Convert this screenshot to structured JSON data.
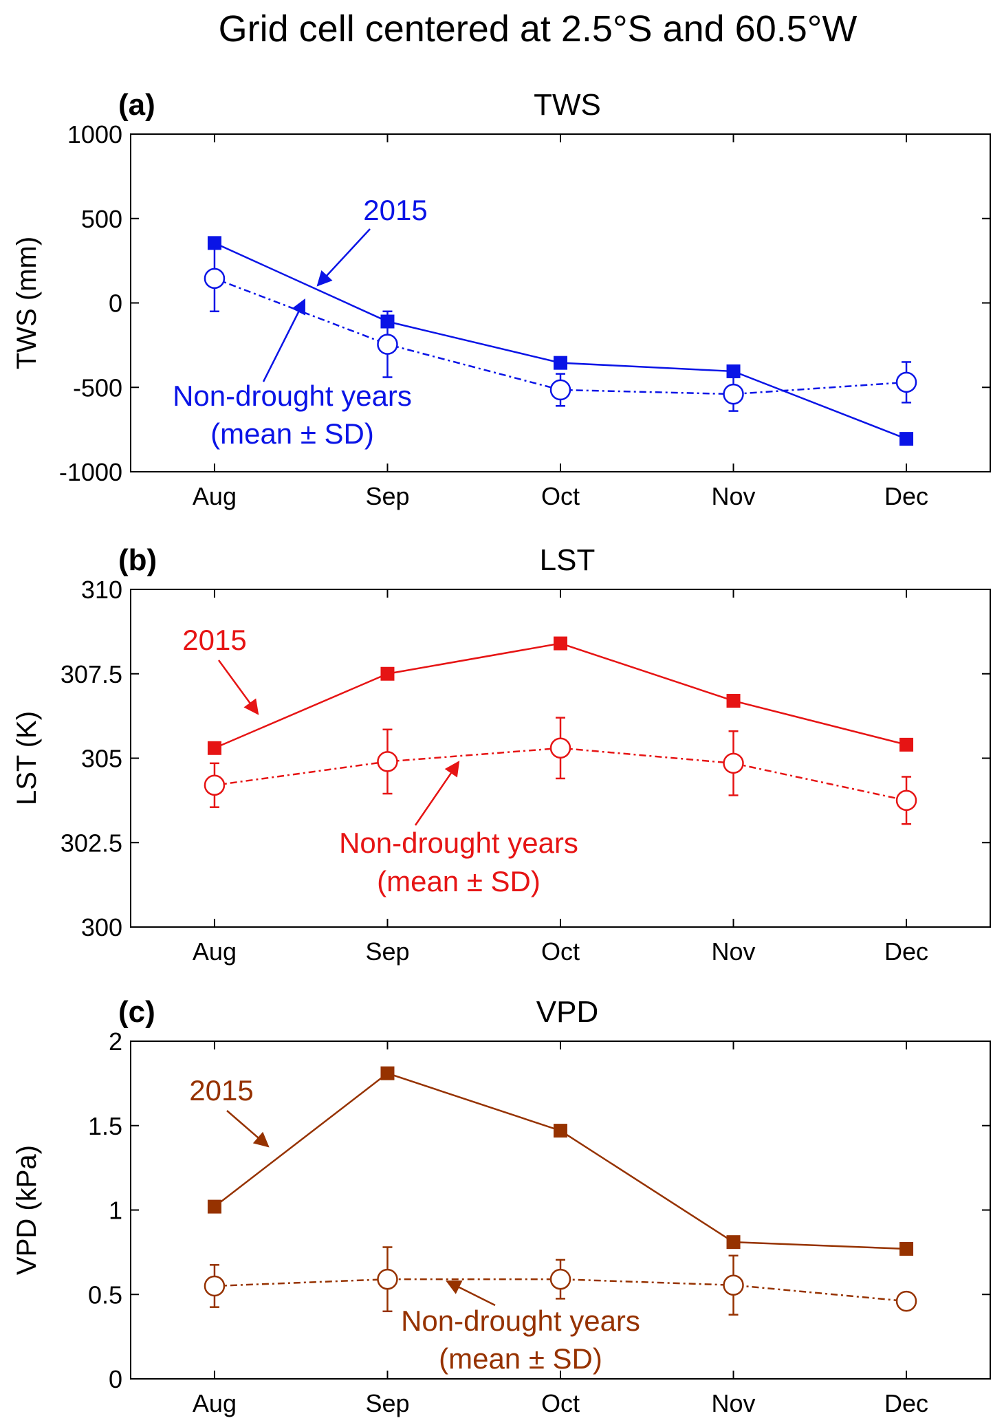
{
  "figure_title": "Grid cell centered at 2.5°S and 60.5°W",
  "chart_data": [
    {
      "type": "line",
      "panel_label": "(a)",
      "title": "TWS",
      "ylabel": "TWS (mm)",
      "xlabel": "",
      "categories": [
        "Aug",
        "Sep",
        "Oct",
        "Nov",
        "Dec"
      ],
      "ylim": [
        -1000,
        1000
      ],
      "yticks": [
        1000,
        500,
        0,
        -500,
        -1000
      ],
      "ytick_labels": [
        "1000",
        "500",
        "0",
        "-500",
        "-1000"
      ],
      "grid": false,
      "color": "#0a14e6",
      "series": [
        {
          "name": "2015",
          "values": [
            355,
            -110,
            -355,
            -405,
            -805
          ],
          "style": "solid",
          "marker": "filled-square"
        },
        {
          "name": "Non-drought years (mean ± SD)",
          "values": [
            145,
            -245,
            -515,
            -540,
            -470
          ],
          "sd": [
            195,
            195,
            95,
            100,
            120
          ],
          "style": "dash-dot",
          "marker": "open-circle"
        }
      ],
      "annotations": [
        {
          "text": "2015",
          "target": "2015"
        },
        {
          "text": "Non-drought years",
          "text2": "(mean ± SD)",
          "target": "Non-drought years (mean ± SD)"
        }
      ]
    },
    {
      "type": "line",
      "panel_label": "(b)",
      "title": "LST",
      "ylabel": "LST (K)",
      "xlabel": "",
      "categories": [
        "Aug",
        "Sep",
        "Oct",
        "Nov",
        "Dec"
      ],
      "ylim": [
        300,
        310
      ],
      "yticks": [
        310,
        307.5,
        305,
        302.5,
        300
      ],
      "ytick_labels": [
        "310",
        "307.5",
        "305",
        "302.5",
        "300"
      ],
      "grid": false,
      "color": "#e61414",
      "series": [
        {
          "name": "2015",
          "values": [
            305.3,
            307.5,
            308.4,
            306.7,
            305.4
          ],
          "style": "solid",
          "marker": "filled-square"
        },
        {
          "name": "Non-drought years (mean ± SD)",
          "values": [
            304.2,
            304.9,
            305.3,
            304.85,
            303.75
          ],
          "sd": [
            0.65,
            0.95,
            0.9,
            0.95,
            0.7
          ],
          "style": "dash-dot",
          "marker": "open-circle"
        }
      ],
      "annotations": [
        {
          "text": "2015",
          "target": "2015"
        },
        {
          "text": "Non-drought years",
          "text2": "(mean ± SD)",
          "target": "Non-drought years (mean ± SD)"
        }
      ]
    },
    {
      "type": "line",
      "panel_label": "(c)",
      "title": "VPD",
      "ylabel": "VPD (kPa)",
      "xlabel": "",
      "categories": [
        "Aug",
        "Sep",
        "Oct",
        "Nov",
        "Dec"
      ],
      "ylim": [
        0,
        2
      ],
      "yticks": [
        2,
        1.5,
        1,
        0.5,
        0
      ],
      "ytick_labels": [
        "2",
        "1.5",
        "1",
        "0.5",
        "0"
      ],
      "grid": false,
      "color": "#963200",
      "series": [
        {
          "name": "2015",
          "values": [
            1.02,
            1.81,
            1.47,
            0.81,
            0.77
          ],
          "style": "solid",
          "marker": "filled-square"
        },
        {
          "name": "Non-drought years (mean ± SD)",
          "values": [
            0.55,
            0.59,
            0.59,
            0.555,
            0.46
          ],
          "sd": [
            0.125,
            0.19,
            0.115,
            0.175,
            0.04
          ],
          "style": "dash-dot",
          "marker": "open-circle"
        }
      ],
      "annotations": [
        {
          "text": "2015",
          "target": "2015"
        },
        {
          "text": "Non-drought years",
          "text2": "(mean ± SD)",
          "target": "Non-drought years (mean ± SD)"
        }
      ]
    }
  ]
}
